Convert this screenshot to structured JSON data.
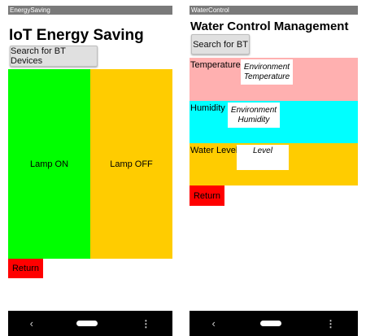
{
  "left_app": {
    "title_bar": "EnergySaving",
    "heading": "IoT Energy Saving",
    "search_button": "Search for BT Devices",
    "lamp_on_label": "Lamp ON",
    "lamp_off_label": "Lamp OFF",
    "return_button": "Return",
    "colors": {
      "lamp_on": "#00ff00",
      "lamp_off": "#ffcc00",
      "return": "#ff0000"
    }
  },
  "right_app": {
    "title_bar": "WaterControl",
    "heading": "Water Control Management",
    "search_button": "Search for BT",
    "sensors": [
      {
        "label": "Temperature",
        "value": "Environment\nTemperature",
        "color": "#ffb0b0"
      },
      {
        "label": "Humidity",
        "value": "Environment\nHumidity",
        "color": "#00ffff"
      },
      {
        "label": "Water Level",
        "value": "Level",
        "color": "#ffcc00"
      }
    ],
    "return_button": "Return"
  },
  "navbar": {
    "back_glyph": "‹",
    "menu_glyph": "⋮"
  }
}
